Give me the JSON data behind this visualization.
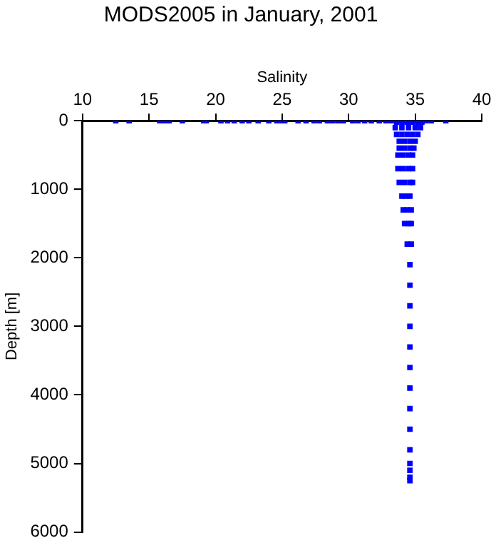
{
  "chart_data": {
    "type": "scatter",
    "title": "MODS2005 in January, 2001",
    "xlabel": "Salinity",
    "ylabel": "Depth [m]",
    "xlim": [
      10,
      40
    ],
    "xticks": [
      10,
      15,
      20,
      25,
      30,
      35,
      40
    ],
    "ylim": [
      6000,
      0
    ],
    "yticks": [
      0,
      1000,
      2000,
      3000,
      4000,
      5000,
      6000
    ],
    "grid": false,
    "legend": false,
    "marker": "square",
    "series": [
      {
        "color": "#0000ff",
        "x": [
          12.5,
          13.5,
          15.8,
          16.2,
          16.5,
          17.5,
          19.1,
          19.3,
          20.4,
          20.9,
          21.4,
          22.0,
          22.5,
          23.2,
          24.0,
          24.6,
          25.0,
          25.2,
          26.2,
          26.8,
          27.4,
          27.8,
          28.4,
          28.8,
          29.2,
          29.6,
          30.3,
          30.7,
          31.2,
          31.7,
          32.3,
          32.8,
          33.2,
          33.8,
          34.3,
          34.8,
          35.3,
          35.8,
          36.2,
          37.3,
          33.6,
          34.0,
          34.4,
          34.8,
          35.2,
          35.5,
          33.5,
          34.0,
          34.5,
          35.0,
          35.4,
          33.6,
          34.0,
          34.4,
          34.8,
          35.2,
          33.8,
          34.2,
          34.6,
          35.0,
          33.8,
          34.2,
          34.6,
          34.9,
          33.7,
          34.1,
          34.5,
          34.8,
          33.7,
          34.1,
          34.5,
          34.8,
          33.8,
          34.2,
          34.6,
          34.8,
          34.0,
          34.3,
          34.6,
          34.1,
          34.4,
          34.7,
          34.2,
          34.5,
          34.7,
          34.4,
          34.7,
          34.6,
          34.6,
          34.6,
          34.6,
          34.6,
          34.6,
          34.6,
          34.6,
          34.6,
          34.6,
          34.6,
          34.6,
          34.6,
          34.6
        ],
        "values": [
          0,
          0,
          0,
          0,
          0,
          0,
          0,
          0,
          0,
          0,
          0,
          0,
          0,
          0,
          0,
          0,
          0,
          0,
          0,
          0,
          0,
          0,
          0,
          0,
          0,
          0,
          0,
          0,
          0,
          0,
          0,
          0,
          0,
          0,
          0,
          0,
          0,
          0,
          0,
          0,
          20,
          20,
          20,
          20,
          20,
          20,
          100,
          100,
          100,
          100,
          100,
          200,
          200,
          200,
          200,
          200,
          300,
          300,
          300,
          300,
          400,
          400,
          400,
          400,
          500,
          500,
          500,
          500,
          700,
          700,
          700,
          700,
          900,
          900,
          900,
          900,
          1100,
          1100,
          1100,
          1300,
          1300,
          1300,
          1500,
          1500,
          1500,
          1800,
          1800,
          2100,
          2400,
          2700,
          3000,
          3300,
          3600,
          3900,
          4200,
          4500,
          4800,
          5000,
          5100,
          5200,
          5250
        ]
      }
    ]
  }
}
